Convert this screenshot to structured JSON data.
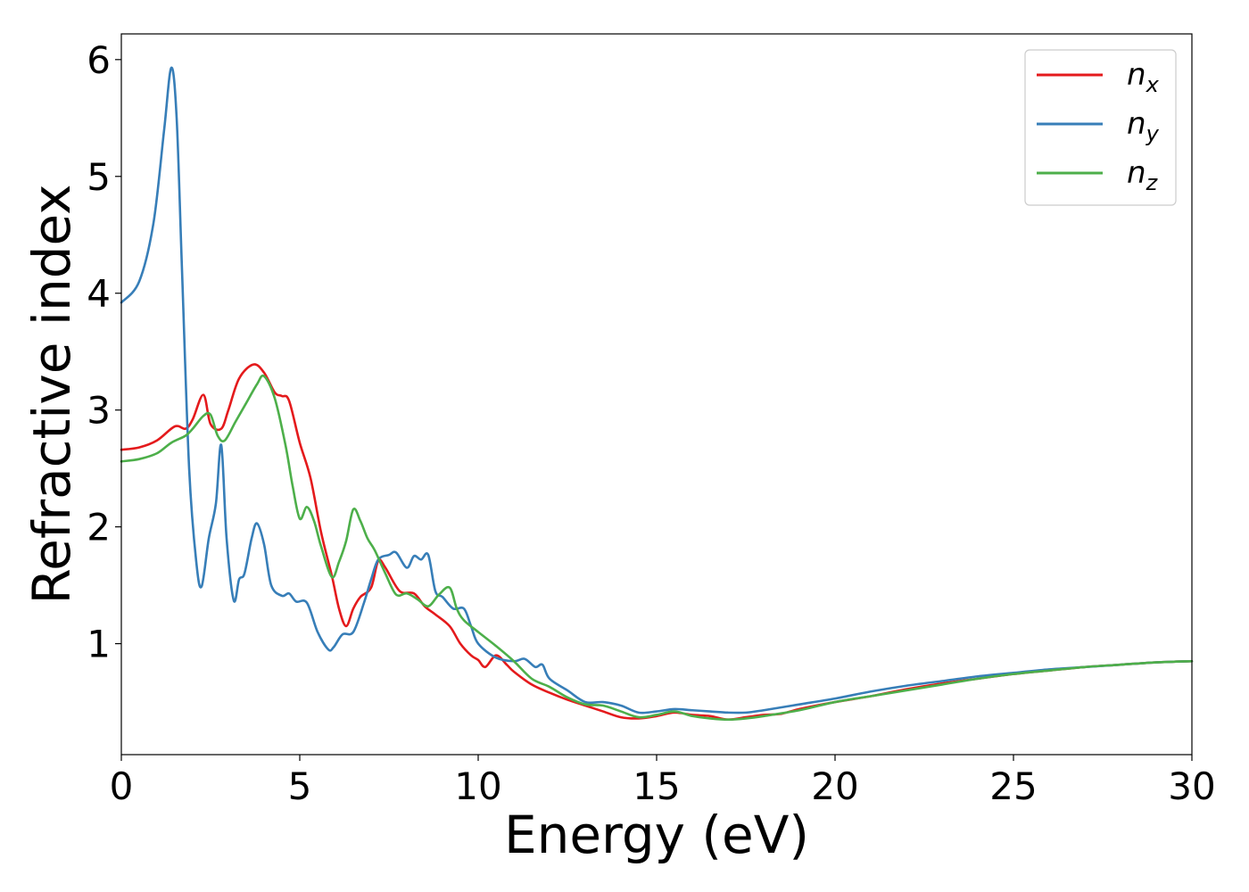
{
  "chart_data": {
    "type": "line",
    "title": "",
    "xlabel": "Energy (eV)",
    "ylabel": "Refractive index",
    "xlim": [
      0,
      30
    ],
    "ylim": [
      0.05,
      6.22
    ],
    "xticks": [
      0,
      5,
      10,
      15,
      20,
      25,
      30
    ],
    "yticks": [
      1,
      2,
      3,
      4,
      5,
      6
    ],
    "grid": false,
    "legend_position": "top-right",
    "series": [
      {
        "name": "n",
        "subscript": "x",
        "color": "#e41a1c",
        "x": [
          0,
          0.5,
          1.0,
          1.5,
          1.8,
          2.0,
          2.3,
          2.5,
          2.8,
          3.0,
          3.3,
          3.7,
          4.0,
          4.3,
          4.5,
          4.7,
          5.0,
          5.3,
          5.6,
          5.9,
          6.1,
          6.3,
          6.5,
          6.7,
          7.0,
          7.2,
          7.4,
          7.8,
          8.2,
          8.5,
          8.8,
          9.2,
          9.5,
          9.8,
          10.0,
          10.2,
          10.5,
          10.8,
          11.0,
          11.5,
          12.0,
          12.5,
          13.0,
          13.5,
          14.0,
          14.5,
          15.0,
          15.5,
          16.0,
          16.5,
          17.0,
          17.5,
          18.0,
          18.5,
          19.0,
          20.0,
          21.0,
          22.0,
          23.0,
          24.0,
          25.0,
          26.0,
          27.0,
          28.0,
          29.0,
          30.0
        ],
        "y": [
          2.66,
          2.68,
          2.74,
          2.86,
          2.84,
          2.92,
          3.13,
          2.88,
          2.84,
          3.0,
          3.27,
          3.39,
          3.32,
          3.15,
          3.12,
          3.08,
          2.72,
          2.42,
          1.95,
          1.58,
          1.3,
          1.15,
          1.3,
          1.4,
          1.48,
          1.71,
          1.65,
          1.45,
          1.43,
          1.32,
          1.25,
          1.15,
          1.0,
          0.9,
          0.86,
          0.8,
          0.9,
          0.82,
          0.76,
          0.65,
          0.58,
          0.52,
          0.47,
          0.42,
          0.37,
          0.36,
          0.38,
          0.41,
          0.39,
          0.38,
          0.35,
          0.37,
          0.39,
          0.4,
          0.44,
          0.5,
          0.55,
          0.61,
          0.66,
          0.7,
          0.74,
          0.77,
          0.8,
          0.82,
          0.84,
          0.85
        ]
      },
      {
        "name": "n",
        "subscript": "y",
        "color": "#377eb8",
        "x": [
          0,
          0.5,
          0.9,
          1.2,
          1.4,
          1.55,
          1.7,
          1.9,
          2.1,
          2.25,
          2.45,
          2.65,
          2.8,
          2.95,
          3.15,
          3.3,
          3.45,
          3.65,
          3.8,
          4.0,
          4.2,
          4.5,
          4.7,
          4.9,
          5.2,
          5.5,
          5.8,
          5.95,
          6.2,
          6.5,
          6.8,
          7.0,
          7.2,
          7.5,
          7.7,
          8.0,
          8.2,
          8.4,
          8.6,
          8.8,
          9.0,
          9.3,
          9.6,
          9.8,
          10.0,
          10.5,
          11.0,
          11.3,
          11.6,
          11.8,
          12.0,
          12.5,
          13.0,
          13.5,
          14.0,
          14.5,
          15.0,
          15.5,
          16.0,
          16.5,
          17.0,
          17.5,
          18.0,
          19.0,
          20.0,
          21.0,
          22.0,
          23.0,
          24.0,
          25.0,
          26.0,
          27.0,
          28.0,
          29.0,
          30.0
        ],
        "y": [
          3.92,
          4.1,
          4.6,
          5.4,
          5.93,
          5.5,
          4.2,
          2.5,
          1.7,
          1.49,
          1.9,
          2.2,
          2.7,
          1.9,
          1.37,
          1.55,
          1.6,
          1.9,
          2.03,
          1.85,
          1.5,
          1.41,
          1.43,
          1.36,
          1.35,
          1.1,
          0.95,
          0.97,
          1.08,
          1.1,
          1.35,
          1.55,
          1.72,
          1.76,
          1.78,
          1.65,
          1.75,
          1.72,
          1.76,
          1.45,
          1.4,
          1.3,
          1.3,
          1.15,
          1.0,
          0.88,
          0.85,
          0.87,
          0.8,
          0.82,
          0.7,
          0.6,
          0.5,
          0.5,
          0.47,
          0.41,
          0.42,
          0.44,
          0.43,
          0.42,
          0.41,
          0.41,
          0.43,
          0.48,
          0.53,
          0.59,
          0.64,
          0.68,
          0.72,
          0.75,
          0.78,
          0.8,
          0.82,
          0.84,
          0.85
        ]
      },
      {
        "name": "n",
        "subscript": "z",
        "color": "#4daf4a",
        "x": [
          0,
          0.5,
          1.0,
          1.4,
          1.8,
          2.0,
          2.3,
          2.5,
          2.7,
          2.9,
          3.2,
          3.5,
          3.8,
          4.0,
          4.3,
          4.6,
          4.8,
          5.0,
          5.2,
          5.4,
          5.6,
          5.9,
          6.1,
          6.3,
          6.5,
          6.7,
          6.9,
          7.1,
          7.4,
          7.7,
          8.0,
          8.3,
          8.6,
          8.9,
          9.2,
          9.4,
          9.6,
          10.0,
          10.5,
          11.0,
          11.5,
          12.0,
          12.5,
          13.0,
          13.5,
          14.0,
          14.5,
          15.0,
          15.5,
          16.0,
          16.5,
          17.0,
          17.5,
          18.0,
          19.0,
          20.0,
          21.0,
          22.0,
          23.0,
          24.0,
          25.0,
          26.0,
          27.0,
          28.0,
          29.0,
          30.0
        ],
        "y": [
          2.56,
          2.58,
          2.63,
          2.72,
          2.78,
          2.84,
          2.95,
          2.96,
          2.78,
          2.74,
          2.9,
          3.06,
          3.22,
          3.29,
          3.1,
          2.7,
          2.35,
          2.07,
          2.17,
          2.05,
          1.83,
          1.57,
          1.7,
          1.88,
          2.15,
          2.05,
          1.9,
          1.8,
          1.6,
          1.42,
          1.43,
          1.38,
          1.32,
          1.42,
          1.48,
          1.3,
          1.2,
          1.1,
          0.98,
          0.85,
          0.7,
          0.63,
          0.54,
          0.48,
          0.47,
          0.42,
          0.37,
          0.39,
          0.42,
          0.38,
          0.36,
          0.35,
          0.36,
          0.38,
          0.43,
          0.5,
          0.55,
          0.6,
          0.65,
          0.7,
          0.74,
          0.77,
          0.8,
          0.82,
          0.84,
          0.85
        ]
      }
    ]
  }
}
